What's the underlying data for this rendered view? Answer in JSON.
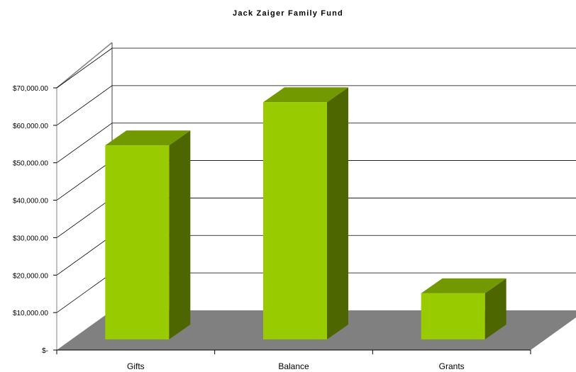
{
  "chart_data": {
    "type": "bar",
    "title": "Jack Zaiger Family Fund",
    "xlabel": "",
    "ylabel": "",
    "categories": [
      "Gifts",
      "Balance",
      "Grants"
    ],
    "values": [
      57500,
      69000,
      18000
    ],
    "ylim": [
      0,
      70000
    ],
    "yticks": [
      0,
      10000,
      20000,
      30000,
      40000,
      50000,
      60000,
      70000
    ],
    "ytick_labels": [
      "$-",
      "$10,000.00",
      "$20,000.00",
      "$30,000.00",
      "$40,000.00",
      "$50,000.00",
      "$60,000.00",
      "$70,000.00"
    ],
    "grid": true,
    "style": "3d-column",
    "colors": {
      "bar_front": "#99CC00",
      "bar_top": "#739900",
      "bar_side": "#4D6600",
      "floor": "#808080",
      "grid": "#000000",
      "wall_edge": "#808080"
    }
  }
}
